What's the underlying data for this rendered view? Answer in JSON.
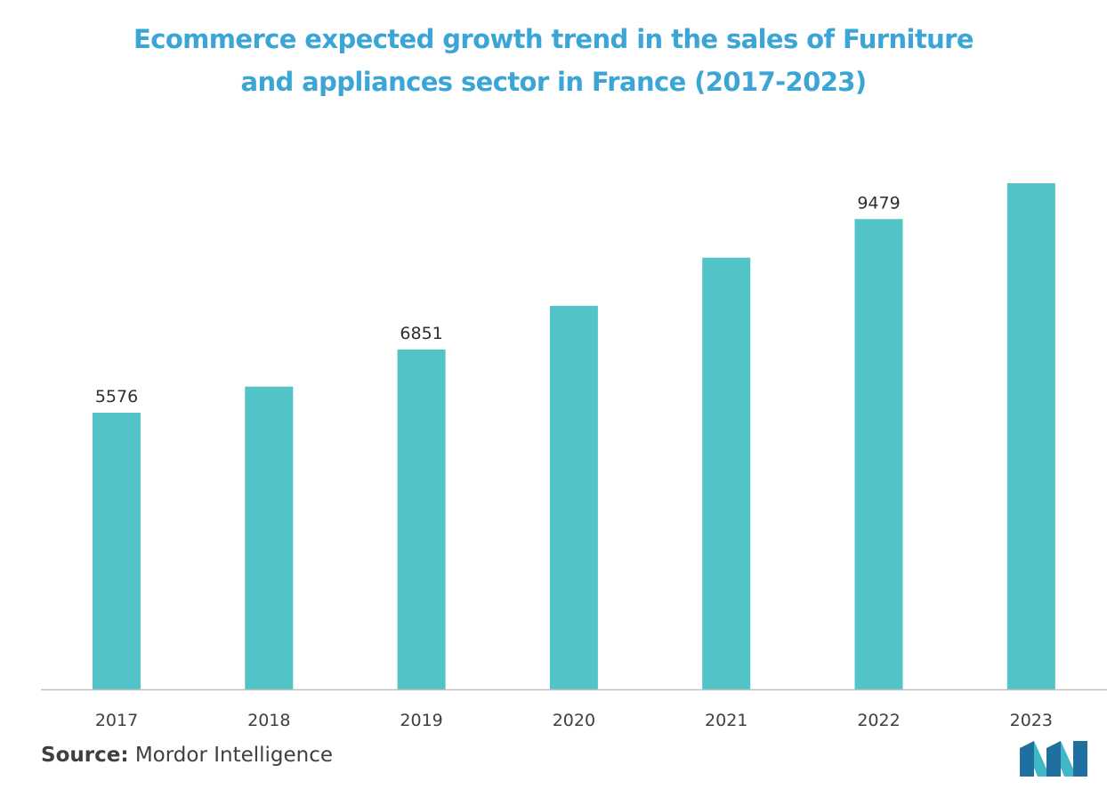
{
  "title": {
    "line1": "Ecommerce expected growth trend in the sales of Furniture",
    "line2": "and appliances sector in France (2017-2023)"
  },
  "colors": {
    "title": "#3ba5d6",
    "bar": "#52c4c7",
    "axis_line": "#bfbfbf",
    "tick_text": "#3f3f3f",
    "label_text": "#2f2f2f",
    "logo_dark": "#1f6f9f",
    "logo_light": "#3fb7c7"
  },
  "source": {
    "label": "Source:",
    "text": " Mordor Intelligence"
  },
  "logo": {
    "icon": "mordor-intelligence-logo"
  },
  "chart_data": {
    "type": "bar",
    "categories": [
      "2017",
      "2018",
      "2019",
      "2020",
      "2021",
      "2022",
      "2023"
    ],
    "values": [
      5576,
      6100,
      6851,
      7730,
      8700,
      9479,
      10200
    ],
    "data_labels": [
      "5576",
      "",
      "6851",
      "",
      "",
      "9479",
      ""
    ],
    "title": "Ecommerce expected growth trend in the sales of Furniture and appliances sector in France (2017-2023)",
    "xlabel": "",
    "ylabel": "",
    "ylim": [
      0,
      12000
    ],
    "grid": false,
    "legend": "none"
  }
}
